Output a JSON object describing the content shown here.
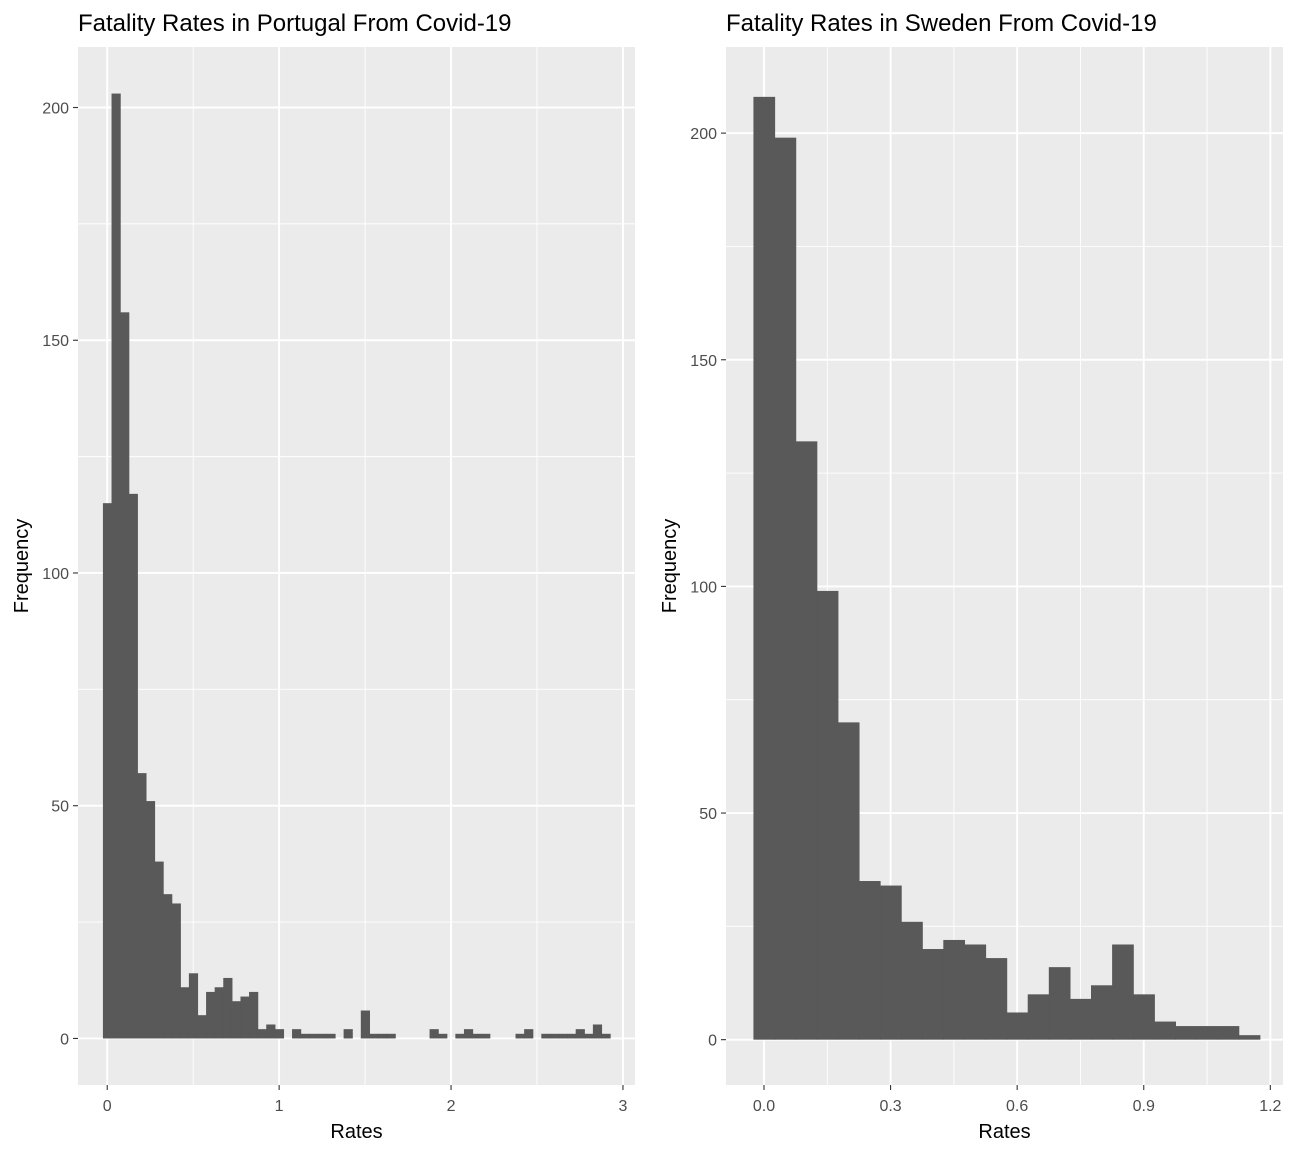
{
  "chart_data": [
    {
      "type": "bar",
      "title": "Fatality Rates in Portugal From Covid-19",
      "xlabel": "Rates",
      "ylabel": "Frequency",
      "xlim": [
        -0.17,
        3.07
      ],
      "ylim": [
        -10,
        213
      ],
      "xticks": [
        0,
        1,
        2,
        3
      ],
      "yticks": [
        0,
        50,
        100,
        150,
        200
      ],
      "bin_width": 0.05,
      "bin_centers": [
        0,
        0.05,
        0.1,
        0.15,
        0.2,
        0.25,
        0.3,
        0.35,
        0.4,
        0.45,
        0.5,
        0.55,
        0.6,
        0.65,
        0.7,
        0.75,
        0.8,
        0.85,
        0.9,
        0.95,
        1,
        1.05,
        1.1,
        1.15,
        1.2,
        1.25,
        1.3,
        1.35,
        1.4,
        1.45,
        1.5,
        1.55,
        1.6,
        1.65,
        1.7,
        1.75,
        1.8,
        1.85,
        1.9,
        1.95,
        2,
        2.05,
        2.1,
        2.15,
        2.2,
        2.25,
        2.3,
        2.35,
        2.4,
        2.45,
        2.5,
        2.55,
        2.6,
        2.65,
        2.7,
        2.75,
        2.8,
        2.85,
        2.9
      ],
      "values": [
        115,
        203,
        156,
        117,
        57,
        51,
        38,
        31,
        29,
        11,
        14,
        5,
        10,
        11,
        13,
        8,
        9,
        10,
        2,
        3,
        2,
        0,
        2,
        1,
        1,
        1,
        1,
        0,
        2,
        0,
        6,
        1,
        1,
        1,
        0,
        0,
        0,
        0,
        2,
        1,
        0,
        1,
        2,
        1,
        1,
        0,
        0,
        0,
        1,
        2,
        0,
        1,
        1,
        1,
        1,
        2,
        1,
        3,
        1
      ],
      "grid": true
    },
    {
      "type": "bar",
      "title": "Fatality Rates in Sweden From Covid-19",
      "xlabel": "Rates",
      "ylabel": "Frequency",
      "xlim": [
        -0.09,
        1.23
      ],
      "ylim": [
        -10,
        219
      ],
      "xticks": [
        0.0,
        0.3,
        0.6,
        0.9,
        1.2
      ],
      "xtick_labels": [
        "0.0",
        "0.3",
        "0.6",
        "0.9",
        "1.2"
      ],
      "yticks": [
        0,
        50,
        100,
        150,
        200
      ],
      "bin_width": 0.05,
      "bin_centers": [
        0,
        0.05,
        0.1,
        0.15,
        0.2,
        0.25,
        0.3,
        0.35,
        0.4,
        0.45,
        0.5,
        0.55,
        0.6,
        0.65,
        0.7,
        0.75,
        0.8,
        0.85,
        0.9,
        0.95,
        1,
        1.05,
        1.1,
        1.15
      ],
      "values": [
        208,
        199,
        132,
        99,
        70,
        35,
        34,
        26,
        20,
        22,
        21,
        18,
        6,
        10,
        16,
        9,
        12,
        21,
        10,
        4,
        3,
        3,
        3,
        1
      ],
      "grid": true
    }
  ],
  "style": {
    "panel_background": "#ebebeb",
    "grid_major": "#ffffff",
    "bar_fill": "#595959",
    "tick_text": "#4d4d4d"
  }
}
